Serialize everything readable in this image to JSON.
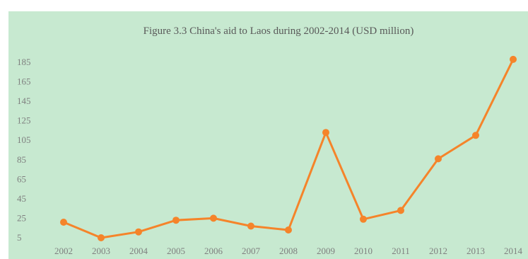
{
  "top_strip": {
    "text": ""
  },
  "chart_data": {
    "type": "line",
    "title": "Figure 3.3 China's aid to Laos during 2002-2014 (USD million)",
    "xlabel": "",
    "ylabel": "",
    "categories": [
      "2002",
      "2003",
      "2004",
      "2005",
      "2006",
      "2007",
      "2008",
      "2009",
      "2010",
      "2011",
      "2012",
      "2013",
      "2014"
    ],
    "series": [
      {
        "values": [
          21,
          5,
          11,
          23,
          25,
          17,
          13,
          113,
          24,
          33,
          86,
          110,
          188
        ]
      }
    ],
    "y_ticks": [
      5,
      25,
      45,
      65,
      85,
      105,
      125,
      145,
      165,
      185
    ],
    "ylim": [
      0,
      198
    ],
    "grid": false,
    "legend": "none",
    "colors": {
      "background": "#c7e9d0",
      "line": "#f5842a",
      "marker": "#f5842a",
      "text": "#7f7f7f",
      "title": "#595959"
    }
  }
}
